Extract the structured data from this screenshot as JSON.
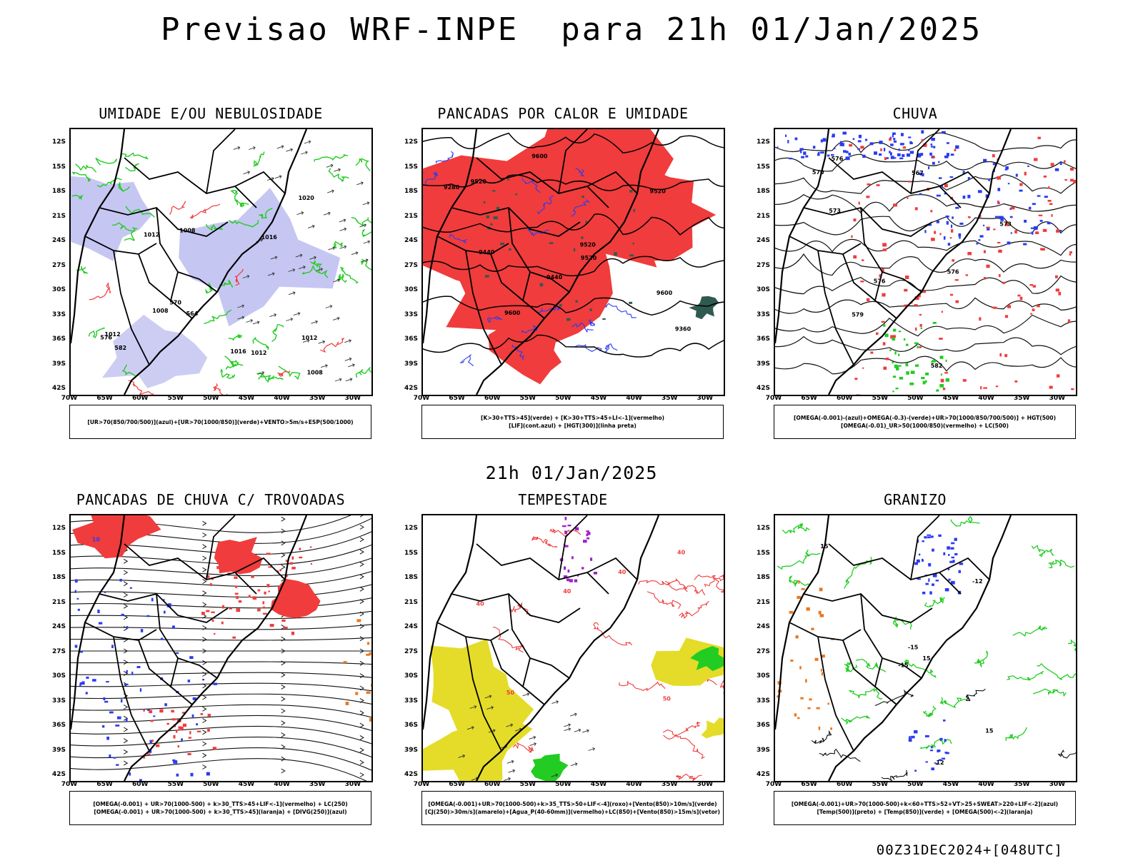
{
  "header": {
    "title": "Previsao WRF-INPE  para 21h 01/Jan/2025",
    "mid_date": "21h 01/Jan/2025",
    "footer": "00Z31DEC2024+[048UTC]"
  },
  "axes": {
    "lat_labels": [
      "12S",
      "15S",
      "18S",
      "21S",
      "24S",
      "27S",
      "30S",
      "33S",
      "36S",
      "39S",
      "42S"
    ],
    "lon_labels": [
      "70W",
      "65W",
      "60W",
      "55W",
      "50W",
      "45W",
      "40W",
      "35W",
      "30W"
    ]
  },
  "colors": {
    "red": "#f03c3c",
    "green": "#22cc22",
    "blue": "#2a3cf0",
    "lavender": "#b8b8f0",
    "darkgreen": "#2f5a50",
    "yellow": "#e4dc28",
    "orange": "#e87820",
    "purple": "#a020c8"
  },
  "panels": [
    {
      "title": "UMIDADE E/OU NEBULOSIDADE",
      "legend": [
        "[UR>70(850/700/500)](azul)+[UR>70(1000/850)](verde)+VENTO>5m/s+ESP(500/1000)"
      ],
      "contour_labels": [
        "1008",
        "1008",
        "1012",
        "1012",
        "1008",
        "1012",
        "1016",
        "1016",
        "1012",
        "1020",
        "576",
        "570",
        "564",
        "582"
      ]
    },
    {
      "title": "PANCADAS POR CALOR E UMIDADE",
      "legend": [
        "[K>30+TTS>45](verde) + [K>30+TTS>45+LI<-1](vermelho)",
        "[LIF](cont.azul) + [HGT(300)](linha preta)"
      ],
      "contour_labels": [
        "9600",
        "9600",
        "9600",
        "9520",
        "9520",
        "9520",
        "9440",
        "9440",
        "9360",
        "9280",
        "9520"
      ]
    },
    {
      "title": "CHUVA",
      "legend": [
        "[OMEGA(-0.001)-(azul)+OMEGA(-0.3)-(verde)+UR>70(1000/850/700/500)] + HGT(500)",
        "[OMEGA(-0.01)_UR>50(1000/850)(vermelho) + LC(500)"
      ],
      "contour_labels": [
        "582",
        "579",
        "576",
        "573",
        "570",
        "567",
        "576",
        "573",
        "576"
      ]
    },
    {
      "title": "PANCADAS DE CHUVA C/ TROVOADAS",
      "legend": [
        "[OMEGA(-0.001) + UR>70(1000-500) + k>30_TTS>45+LIF<-1](vermelho) + LC(250)",
        "[OMEGA(-0.001) + UR>70(1000-500) + k>30_TTS>45](laranja) + [DIVG(250)](azul)"
      ],
      "contour_labels": [
        "10"
      ]
    },
    {
      "title": "TEMPESTADE",
      "legend": [
        "[OMEGA(-0.001)+UR>70(1000-500)+k>35_TTS>50+LIF<-4](roxo)+[Vento(850)>10m/s](verde)",
        "[CJ(250)>30m/s](amarelo)+[Agua_P(40-60mm)](vermelho)+LC(850)+[Vento(850)>15m/s](vetor)"
      ],
      "contour_labels": [
        "40",
        "50",
        "40",
        "40",
        "50",
        "40"
      ]
    },
    {
      "title": "GRANIZO",
      "legend": [
        "[OMEGA(-0.001)+UR>70(1000-500)+k<60+TTS>52+VT>25+SWEAT>220+LIF<-2](azul)",
        "[Temp(500)](preto) + [Temp(850)](verde) + [OMEGA(500)<-2](laranja)"
      ],
      "contour_labels": [
        "15",
        "15",
        "15",
        "-12",
        "-12",
        "-15",
        "-15"
      ]
    }
  ]
}
